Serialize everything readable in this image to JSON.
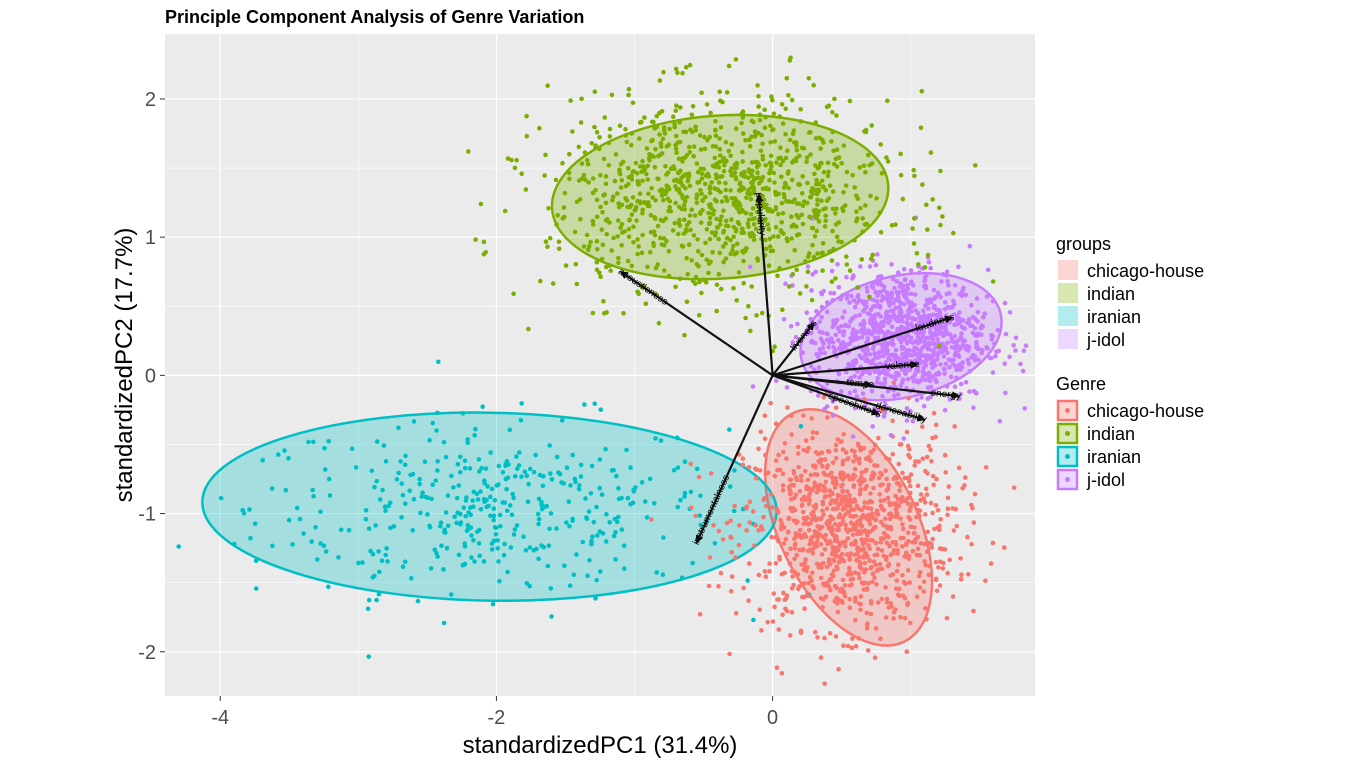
{
  "chart_data": {
    "type": "scatter",
    "title": "Principle Component Analysis of Genre Variation",
    "xlabel": "standardizedPC1 (31.4%)",
    "ylabel": "standardizedPC2 (17.7%)",
    "xlim": [
      -4.4,
      1.9
    ],
    "ylim": [
      -2.32,
      2.47
    ],
    "x_ticks": [
      -4,
      -2,
      0
    ],
    "x_tick_labels": [
      "-4",
      "-2",
      "0"
    ],
    "y_ticks": [
      -2,
      -1,
      0,
      1,
      2
    ],
    "y_tick_labels": [
      "-2",
      "-1",
      "0",
      "1",
      "2"
    ],
    "grid": true,
    "legend_position": "right",
    "legends": [
      {
        "title": "groups",
        "style": "fill",
        "entries": [
          "chicago-house",
          "indian",
          "iranian",
          "j-idol"
        ]
      },
      {
        "title": "Genre",
        "style": "fill-outline-point",
        "entries": [
          "chicago-house",
          "indian",
          "iranian",
          "j-idol"
        ]
      }
    ],
    "series": [
      {
        "name": "chicago-house",
        "color": "#F8766D",
        "center": [
          0.55,
          -1.1
        ],
        "spread": [
          0.38,
          0.36
        ],
        "count": 1050,
        "ellipse": {
          "center": [
            0.55,
            -1.1
          ],
          "rx": 0.92,
          "ry": 0.5,
          "angle_deg": 64
        }
      },
      {
        "name": "indian",
        "color": "#7CAE00",
        "center": [
          -0.38,
          1.3
        ],
        "spread": [
          0.62,
          0.36
        ],
        "count": 1050,
        "ellipse": {
          "center": [
            -0.38,
            1.29
          ],
          "rx": 1.22,
          "ry": 0.59,
          "angle_deg": -4
        }
      },
      {
        "name": "iranian",
        "color": "#00BFC4",
        "center": [
          -2.05,
          -0.95
        ],
        "spread": [
          0.85,
          0.32
        ],
        "count": 420,
        "ellipse": {
          "center": [
            -2.05,
            -0.95
          ],
          "rx": 2.08,
          "ry": 0.68,
          "angle_deg": 1
        }
      },
      {
        "name": "j-idol",
        "color": "#C77CFF",
        "center": [
          0.92,
          0.28
        ],
        "spread": [
          0.32,
          0.24
        ],
        "count": 1050,
        "ellipse": {
          "center": [
            0.93,
            0.28
          ],
          "rx": 0.74,
          "ry": 0.44,
          "angle_deg": -13
        }
      }
    ],
    "loadings": {
      "origin": [
        0.0,
        0.0
      ],
      "vectors": [
        {
          "label": "popularity",
          "x": -0.1,
          "y": 1.31
        },
        {
          "label": "acousticness",
          "x": -1.1,
          "y": 0.75
        },
        {
          "label": "liveness",
          "x": 0.3,
          "y": 0.38
        },
        {
          "label": "loudness",
          "x": 1.3,
          "y": 0.42
        },
        {
          "label": "valence",
          "x": 1.05,
          "y": 0.08
        },
        {
          "label": "tempo",
          "x": 0.72,
          "y": -0.07
        },
        {
          "label": "energy",
          "x": 1.35,
          "y": -0.15
        },
        {
          "label": "danceability",
          "x": 1.1,
          "y": -0.32
        },
        {
          "label": "speechiness",
          "x": 0.77,
          "y": -0.28
        },
        {
          "label": "instrumentalness",
          "x": -0.55,
          "y": -1.21
        }
      ]
    }
  }
}
